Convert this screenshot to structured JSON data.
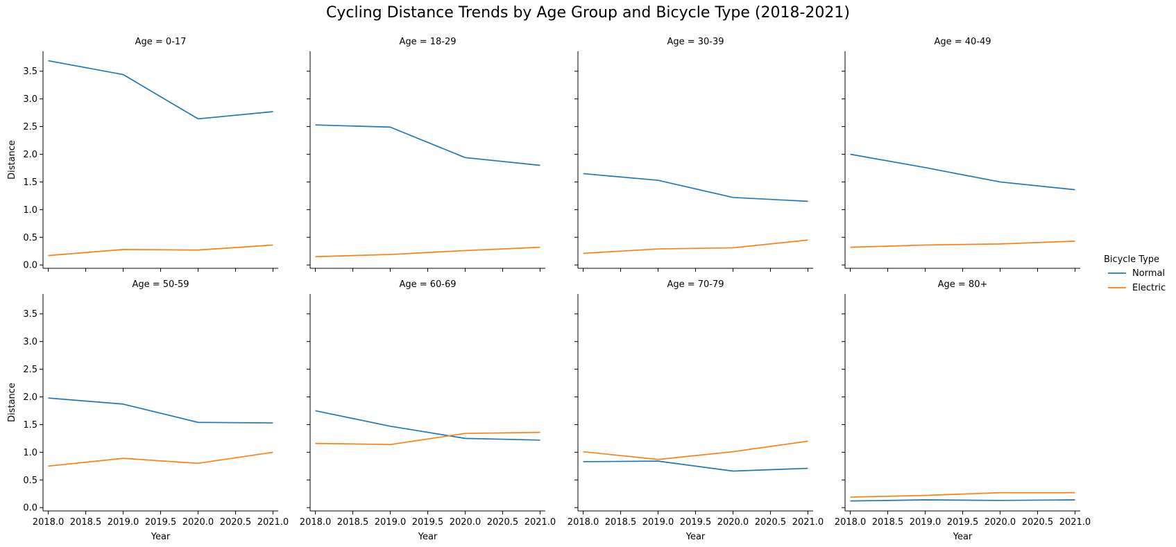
{
  "figure": {
    "title": "Cycling Distance Trends by Age Group and Bicycle Type (2018-2021)"
  },
  "legend": {
    "title": "Bicycle Type",
    "placement": "right",
    "entries": [
      {
        "label": "Normal",
        "color": "#1f77b4"
      },
      {
        "label": "Electric",
        "color": "#ff7f0e"
      }
    ]
  },
  "chart_data": {
    "type": "line",
    "layout": "facet-grid-2x4",
    "xlabel": "Year",
    "ylabel": "Distance",
    "xlim": [
      2017.93,
      2021.07
    ],
    "ylim": [
      -0.06,
      3.86
    ],
    "shared_axes": true,
    "grid": false,
    "x": [
      2018,
      2019,
      2020,
      2021
    ],
    "xticks": [
      2018.0,
      2018.5,
      2019.0,
      2019.5,
      2020.0,
      2020.5,
      2021.0
    ],
    "xtick_labels": [
      "2018.0",
      "2018.5",
      "2019.0",
      "2019.5",
      "2020.0",
      "2020.5",
      "2021.0"
    ],
    "yticks": [
      0.0,
      0.5,
      1.0,
      1.5,
      2.0,
      2.5,
      3.0,
      3.5
    ],
    "ytick_labels": [
      "0.0",
      "0.5",
      "1.0",
      "1.5",
      "2.0",
      "2.5",
      "3.0",
      "3.5"
    ],
    "series_colors": {
      "Normal": "#1f77b4",
      "Electric": "#ff7f0e"
    },
    "panels": [
      {
        "title": "Age = 0-17",
        "series": [
          {
            "name": "Normal",
            "values": [
              3.69,
              3.44,
              2.64,
              2.77
            ]
          },
          {
            "name": "Electric",
            "values": [
              0.17,
              0.28,
              0.27,
              0.36
            ]
          }
        ]
      },
      {
        "title": "Age = 18-29",
        "series": [
          {
            "name": "Normal",
            "values": [
              2.53,
              2.49,
              1.94,
              1.8
            ]
          },
          {
            "name": "Electric",
            "values": [
              0.15,
              0.19,
              0.26,
              0.32
            ]
          }
        ]
      },
      {
        "title": "Age = 30-39",
        "series": [
          {
            "name": "Normal",
            "values": [
              1.65,
              1.53,
              1.22,
              1.15
            ]
          },
          {
            "name": "Electric",
            "values": [
              0.21,
              0.29,
              0.31,
              0.45
            ]
          }
        ]
      },
      {
        "title": "Age = 40-49",
        "series": [
          {
            "name": "Normal",
            "values": [
              2.0,
              1.76,
              1.5,
              1.36
            ]
          },
          {
            "name": "Electric",
            "values": [
              0.32,
              0.36,
              0.38,
              0.43
            ]
          }
        ]
      },
      {
        "title": "Age = 50-59",
        "series": [
          {
            "name": "Normal",
            "values": [
              1.98,
              1.87,
              1.54,
              1.53
            ]
          },
          {
            "name": "Electric",
            "values": [
              0.75,
              0.89,
              0.8,
              1.0
            ]
          }
        ]
      },
      {
        "title": "Age = 60-69",
        "series": [
          {
            "name": "Normal",
            "values": [
              1.75,
              1.47,
              1.25,
              1.22
            ]
          },
          {
            "name": "Electric",
            "values": [
              1.16,
              1.14,
              1.34,
              1.36
            ]
          }
        ]
      },
      {
        "title": "Age = 70-79",
        "series": [
          {
            "name": "Normal",
            "values": [
              0.83,
              0.84,
              0.66,
              0.71
            ]
          },
          {
            "name": "Electric",
            "values": [
              1.01,
              0.87,
              1.01,
              1.2
            ]
          }
        ]
      },
      {
        "title": "Age = 80+",
        "series": [
          {
            "name": "Normal",
            "values": [
              0.12,
              0.14,
              0.13,
              0.14
            ]
          },
          {
            "name": "Electric",
            "values": [
              0.19,
              0.22,
              0.27,
              0.27
            ]
          }
        ]
      }
    ]
  }
}
